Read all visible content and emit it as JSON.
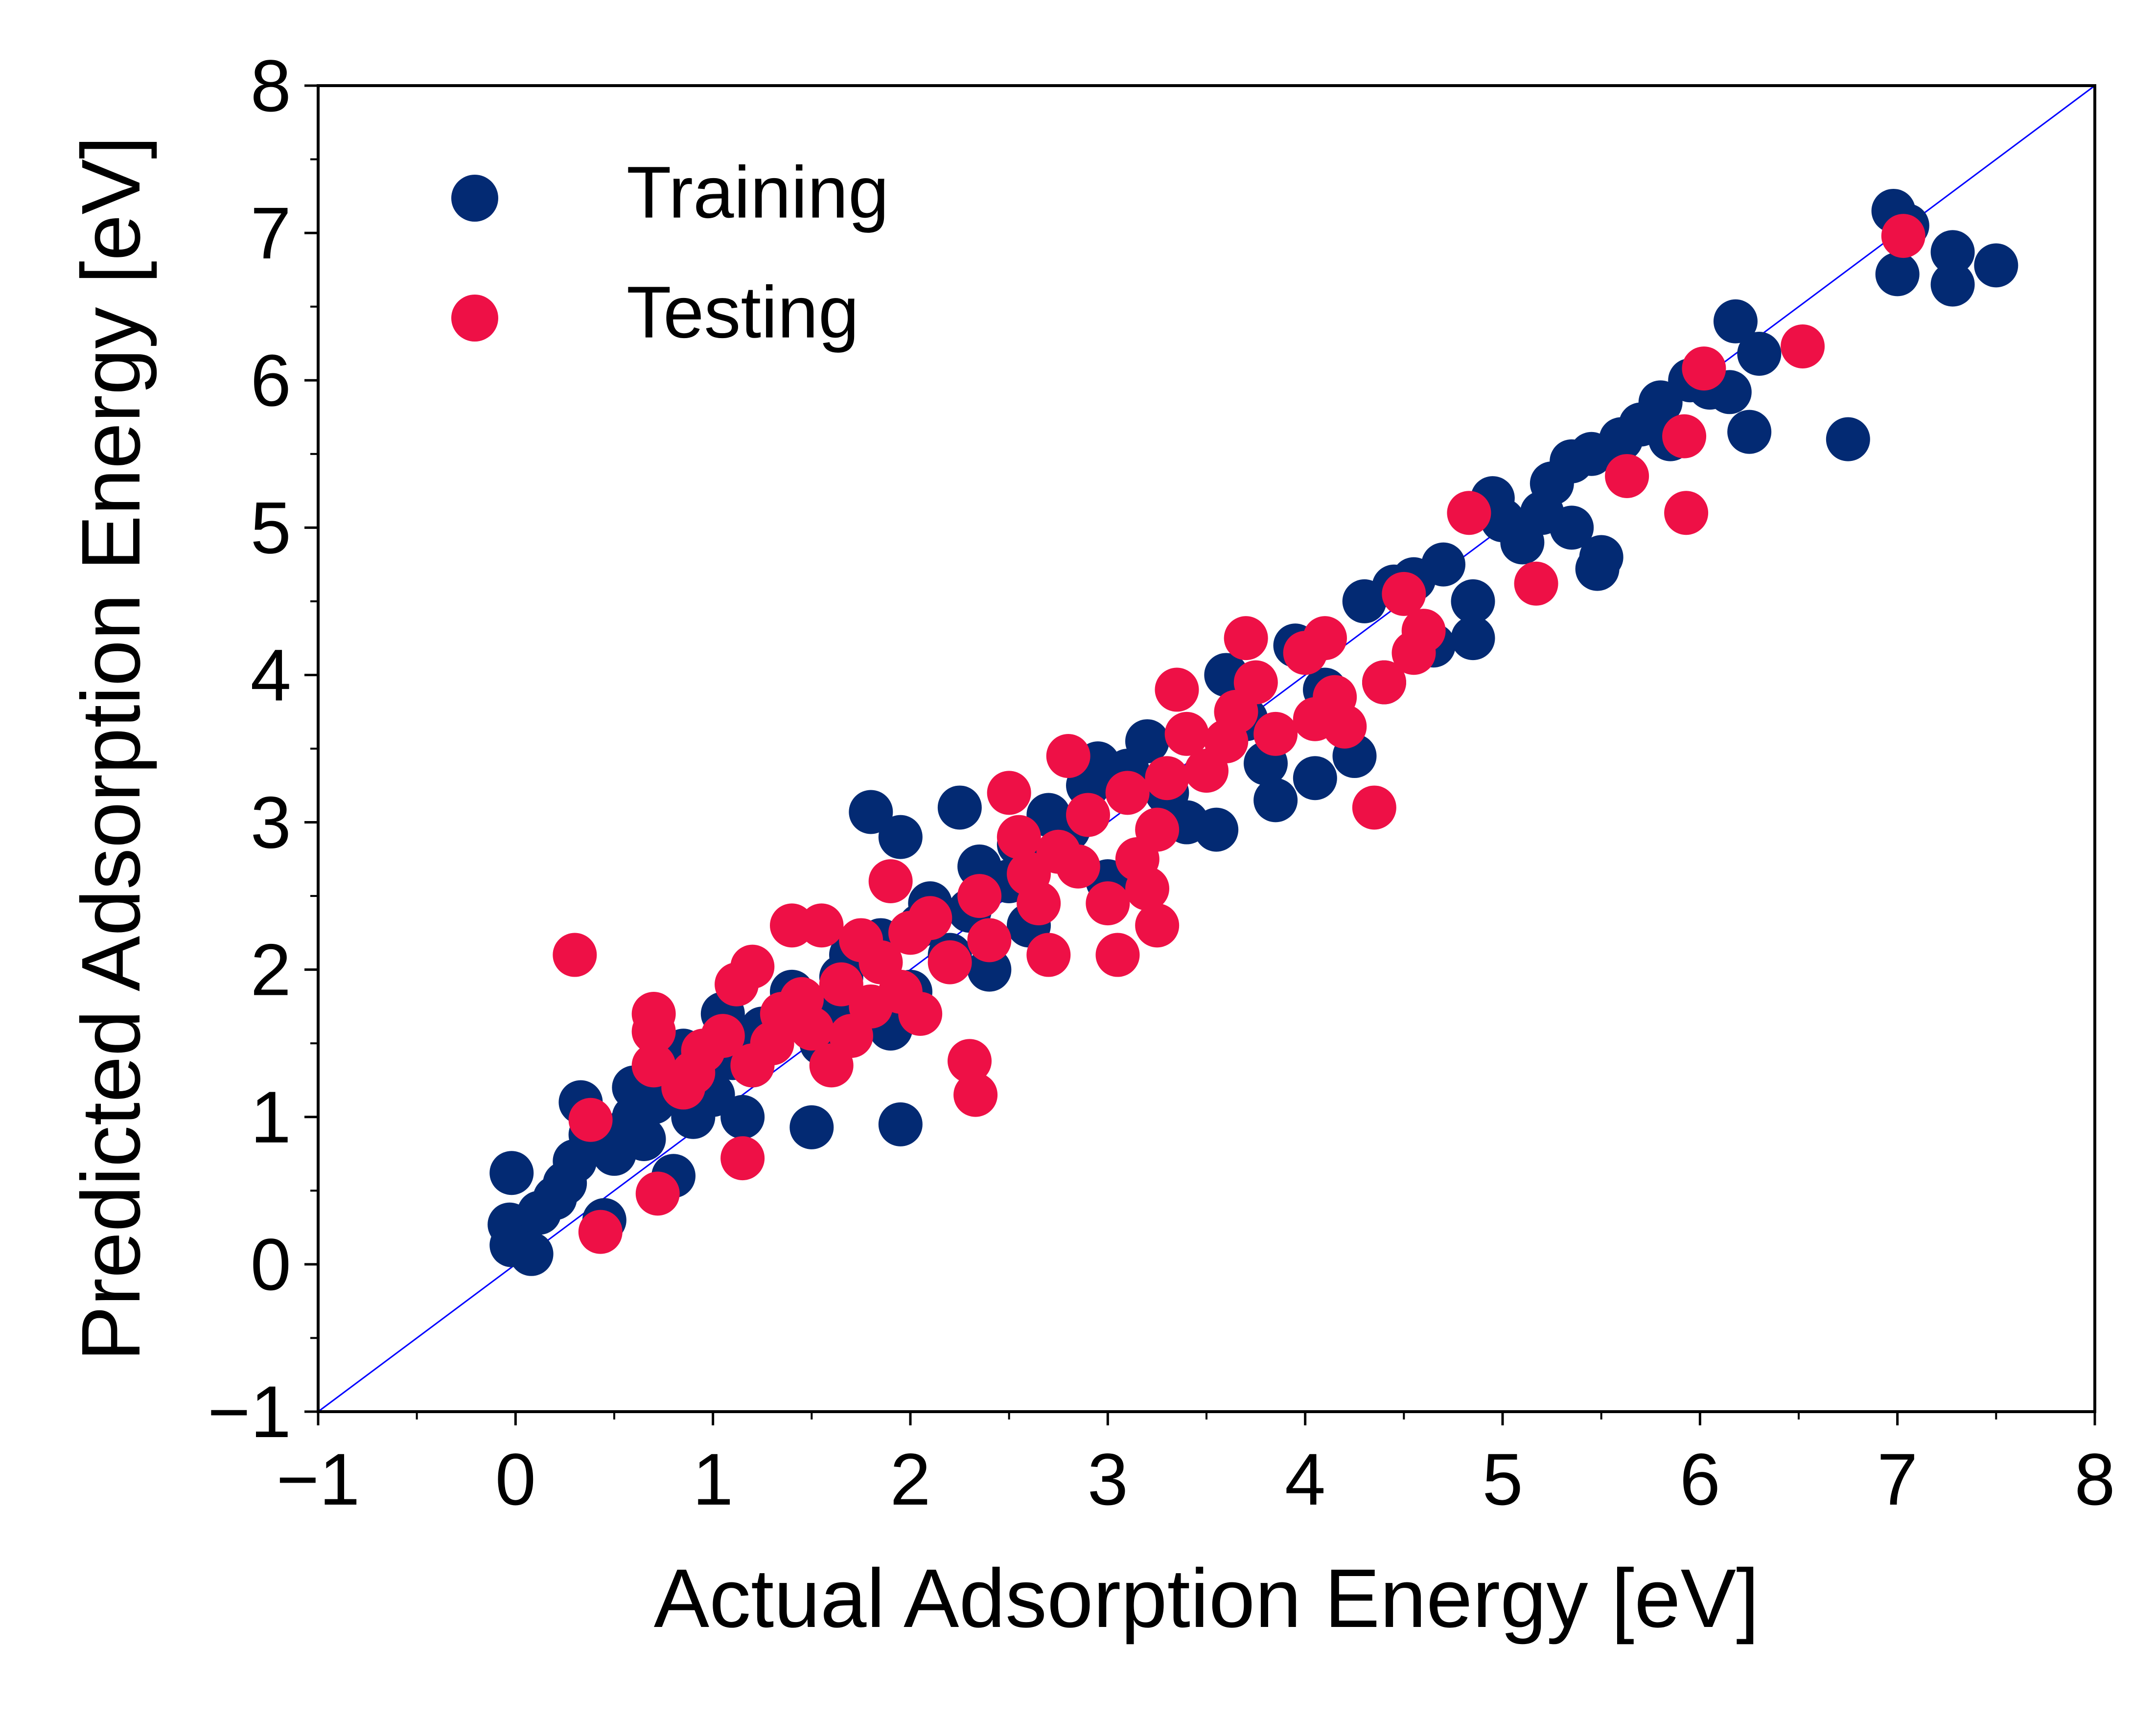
{
  "chart_data": {
    "type": "scatter",
    "xlabel": "Actual Adsorption Energy [eV]",
    "ylabel": "Predicted Adsorption Energy [eV]",
    "xlim": [
      -1,
      8
    ],
    "ylim": [
      -1,
      8
    ],
    "x_ticks": [
      "−1",
      "0",
      "1",
      "2",
      "3",
      "4",
      "5",
      "6",
      "7",
      "8"
    ],
    "y_ticks": [
      "−1",
      "0",
      "1",
      "2",
      "3",
      "4",
      "5",
      "6",
      "7",
      "8"
    ],
    "grid": false,
    "legend_position": "top-left",
    "reference_line": {
      "x": [
        -1,
        8
      ],
      "y": [
        -1,
        8
      ],
      "color": "#0000ff"
    },
    "series": [
      {
        "name": "Training",
        "color": "#032a73",
        "points": [
          [
            -0.02,
            0.62
          ],
          [
            -0.03,
            0.27
          ],
          [
            -0.02,
            0.13
          ],
          [
            0.08,
            0.07
          ],
          [
            0.12,
            0.35
          ],
          [
            0.2,
            0.45
          ],
          [
            0.25,
            0.55
          ],
          [
            0.3,
            0.7
          ],
          [
            0.33,
            1.1
          ],
          [
            0.38,
            0.88
          ],
          [
            0.45,
            0.3
          ],
          [
            0.5,
            0.75
          ],
          [
            0.55,
            0.9
          ],
          [
            0.6,
            1.0
          ],
          [
            0.6,
            1.2
          ],
          [
            0.65,
            0.85
          ],
          [
            0.7,
            1.1
          ],
          [
            0.75,
            1.25
          ],
          [
            0.8,
            0.6
          ],
          [
            0.85,
            1.45
          ],
          [
            0.9,
            1.0
          ],
          [
            0.95,
            1.3
          ],
          [
            1.0,
            1.15
          ],
          [
            1.05,
            1.7
          ],
          [
            1.1,
            1.4
          ],
          [
            1.15,
            1.0
          ],
          [
            1.2,
            1.35
          ],
          [
            1.25,
            1.6
          ],
          [
            1.3,
            1.55
          ],
          [
            1.4,
            1.85
          ],
          [
            1.5,
            0.93
          ],
          [
            1.55,
            1.5
          ],
          [
            1.6,
            1.7
          ],
          [
            1.65,
            1.95
          ],
          [
            1.7,
            2.1
          ],
          [
            1.8,
            3.07
          ],
          [
            1.85,
            2.2
          ],
          [
            1.9,
            1.6
          ],
          [
            1.95,
            0.95
          ],
          [
            1.95,
            2.9
          ],
          [
            2.0,
            1.85
          ],
          [
            2.05,
            2.3
          ],
          [
            2.1,
            2.45
          ],
          [
            2.2,
            2.1
          ],
          [
            2.25,
            3.1
          ],
          [
            2.3,
            2.4
          ],
          [
            2.35,
            2.7
          ],
          [
            2.4,
            2.0
          ],
          [
            2.5,
            2.6
          ],
          [
            2.55,
            2.85
          ],
          [
            2.6,
            2.3
          ],
          [
            2.7,
            3.05
          ],
          [
            2.8,
            2.95
          ],
          [
            2.9,
            3.25
          ],
          [
            2.95,
            3.4
          ],
          [
            3.0,
            2.6
          ],
          [
            3.1,
            3.35
          ],
          [
            3.2,
            3.55
          ],
          [
            3.3,
            3.2
          ],
          [
            3.4,
            3.0
          ],
          [
            3.55,
            2.95
          ],
          [
            3.6,
            4.0
          ],
          [
            3.7,
            3.7
          ],
          [
            3.8,
            3.4
          ],
          [
            3.85,
            3.15
          ],
          [
            3.95,
            4.2
          ],
          [
            4.05,
            3.3
          ],
          [
            4.1,
            3.9
          ],
          [
            4.25,
            3.45
          ],
          [
            4.3,
            4.5
          ],
          [
            4.4,
            3.95
          ],
          [
            4.45,
            4.6
          ],
          [
            4.55,
            4.65
          ],
          [
            4.65,
            4.2
          ],
          [
            4.7,
            4.75
          ],
          [
            4.85,
            4.25
          ],
          [
            4.85,
            4.5
          ],
          [
            4.95,
            5.2
          ],
          [
            5.0,
            5.05
          ],
          [
            5.1,
            4.9
          ],
          [
            5.2,
            5.1
          ],
          [
            5.25,
            5.3
          ],
          [
            5.35,
            5.45
          ],
          [
            5.35,
            5.0
          ],
          [
            5.45,
            5.5
          ],
          [
            5.48,
            4.72
          ],
          [
            5.5,
            4.8
          ],
          [
            5.6,
            5.6
          ],
          [
            5.7,
            5.7
          ],
          [
            5.8,
            5.85
          ],
          [
            5.85,
            5.6
          ],
          [
            5.95,
            6.0
          ],
          [
            6.05,
            5.95
          ],
          [
            6.15,
            5.92
          ],
          [
            6.18,
            6.4
          ],
          [
            6.25,
            5.65
          ],
          [
            6.3,
            6.18
          ],
          [
            6.75,
            5.6
          ],
          [
            6.98,
            7.15
          ],
          [
            7.0,
            6.72
          ],
          [
            7.05,
            7.05
          ],
          [
            7.28,
            6.87
          ],
          [
            7.28,
            6.65
          ],
          [
            7.5,
            6.78
          ]
        ]
      },
      {
        "name": "Testing",
        "color": "#ee1046",
        "points": [
          [
            0.3,
            2.1
          ],
          [
            0.38,
            0.98
          ],
          [
            0.43,
            0.22
          ],
          [
            0.7,
            1.7
          ],
          [
            0.7,
            1.58
          ],
          [
            0.72,
            0.48
          ],
          [
            0.7,
            1.35
          ],
          [
            0.85,
            1.2
          ],
          [
            0.9,
            1.3
          ],
          [
            0.95,
            1.45
          ],
          [
            1.05,
            1.55
          ],
          [
            1.12,
            1.9
          ],
          [
            1.15,
            0.72
          ],
          [
            1.2,
            2.02
          ],
          [
            1.2,
            1.35
          ],
          [
            1.3,
            1.5
          ],
          [
            1.35,
            1.7
          ],
          [
            1.4,
            2.3
          ],
          [
            1.45,
            1.8
          ],
          [
            1.5,
            1.6
          ],
          [
            1.55,
            2.3
          ],
          [
            1.6,
            1.35
          ],
          [
            1.65,
            1.9
          ],
          [
            1.7,
            1.55
          ],
          [
            1.75,
            2.2
          ],
          [
            1.8,
            1.75
          ],
          [
            1.85,
            2.05
          ],
          [
            1.9,
            2.6
          ],
          [
            1.95,
            1.85
          ],
          [
            2.0,
            2.25
          ],
          [
            2.05,
            1.7
          ],
          [
            2.1,
            2.35
          ],
          [
            2.2,
            2.05
          ],
          [
            2.3,
            1.38
          ],
          [
            2.33,
            1.15
          ],
          [
            2.35,
            2.5
          ],
          [
            2.4,
            2.2
          ],
          [
            2.5,
            3.2
          ],
          [
            2.55,
            2.9
          ],
          [
            2.6,
            2.65
          ],
          [
            2.65,
            2.45
          ],
          [
            2.7,
            2.1
          ],
          [
            2.75,
            2.8
          ],
          [
            2.8,
            3.45
          ],
          [
            2.85,
            2.7
          ],
          [
            2.9,
            3.05
          ],
          [
            3.0,
            2.45
          ],
          [
            3.05,
            2.1
          ],
          [
            3.1,
            3.2
          ],
          [
            3.15,
            2.75
          ],
          [
            3.2,
            2.55
          ],
          [
            3.25,
            2.3
          ],
          [
            3.25,
            2.95
          ],
          [
            3.3,
            3.3
          ],
          [
            3.35,
            3.9
          ],
          [
            3.4,
            3.6
          ],
          [
            3.5,
            3.35
          ],
          [
            3.6,
            3.55
          ],
          [
            3.65,
            3.75
          ],
          [
            3.7,
            4.25
          ],
          [
            3.75,
            3.95
          ],
          [
            3.85,
            3.6
          ],
          [
            4.0,
            4.15
          ],
          [
            4.05,
            3.7
          ],
          [
            4.1,
            4.25
          ],
          [
            4.15,
            3.85
          ],
          [
            4.2,
            3.65
          ],
          [
            4.35,
            3.1
          ],
          [
            4.4,
            3.95
          ],
          [
            4.5,
            4.55
          ],
          [
            4.55,
            4.15
          ],
          [
            4.6,
            4.3
          ],
          [
            4.83,
            5.1
          ],
          [
            5.17,
            4.62
          ],
          [
            5.63,
            5.35
          ],
          [
            5.92,
            5.62
          ],
          [
            5.93,
            5.1
          ],
          [
            6.02,
            6.08
          ],
          [
            6.52,
            6.23
          ],
          [
            7.03,
            6.98
          ]
        ]
      }
    ]
  }
}
